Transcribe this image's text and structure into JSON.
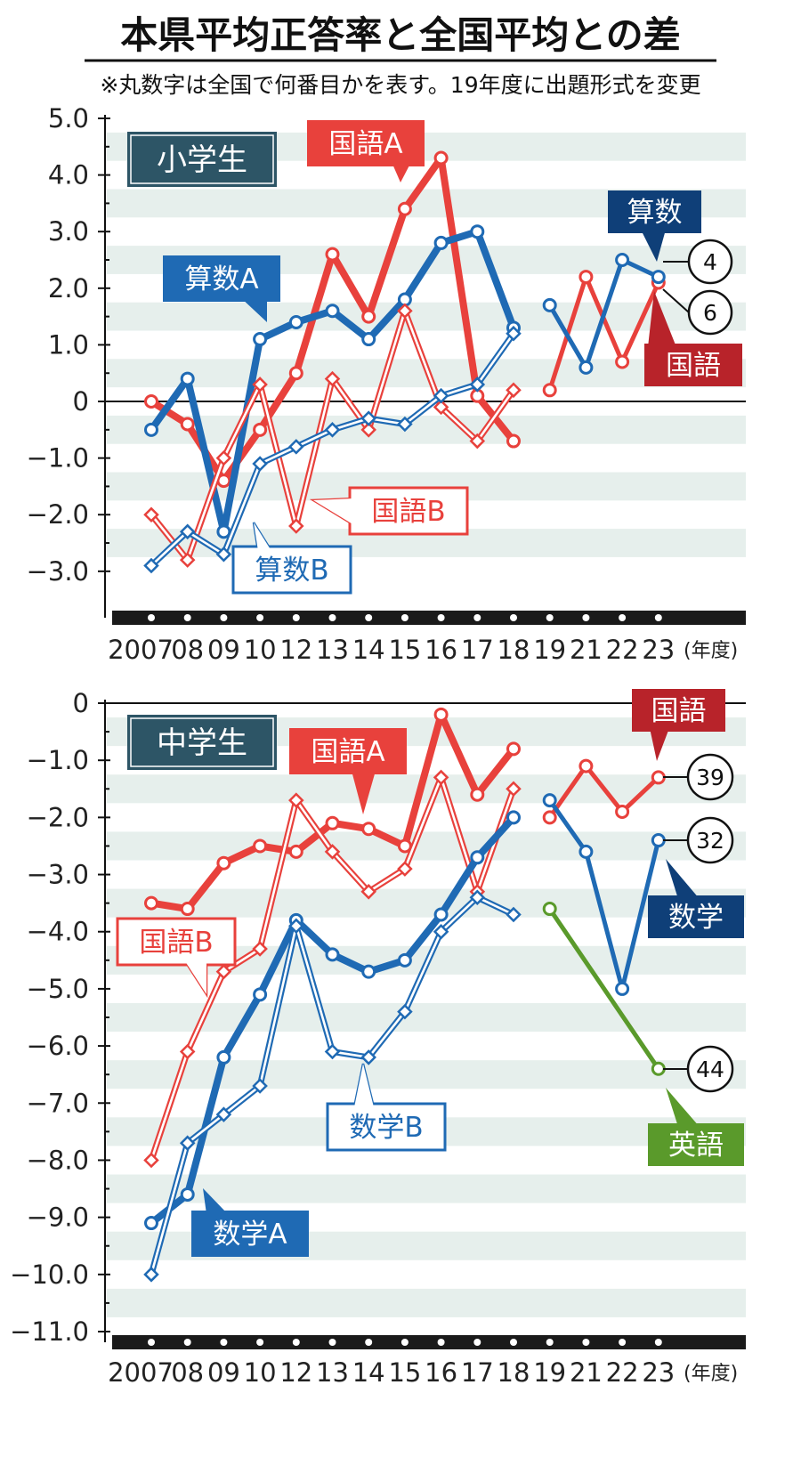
{
  "title": "本県平均正答率と全国平均との差",
  "note": "※丸数字は全国で何番目かを表す。19年度に出題形式を変更",
  "colors": {
    "red": "#e8413c",
    "blue": "#1f6ab4",
    "green": "#5a9a2b",
    "dark_red_label": "#b8232a",
    "dark_blue_label": "#0f3f78",
    "panel_label_bg": "#2d5566",
    "band": "#e6efec"
  },
  "x_tick_labels": [
    "2007",
    "08",
    "09",
    "10",
    "12",
    "13",
    "14",
    "15",
    "16",
    "17",
    "18",
    "19",
    "21",
    "22",
    "23"
  ],
  "x_unit": "(年度)",
  "chart_data": [
    {
      "type": "line",
      "panel_label": "小学生",
      "ylim": [
        -3.6,
        5.0
      ],
      "y_ticks": [
        5.0,
        4.0,
        3.0,
        2.0,
        1.0,
        0,
        -1.0,
        -2.0,
        -3.0
      ],
      "y_tick_labels": [
        "5.0",
        "4.0",
        "3.0",
        "2.0",
        "1.0",
        "0",
        "−1.0",
        "−2.0",
        "−3.0"
      ],
      "series": [
        {
          "name": "国語A",
          "color": "#e8413c",
          "style": "thick",
          "marker": "circle",
          "x": [
            0,
            1,
            2,
            3,
            4,
            5,
            6,
            7,
            8,
            9,
            10
          ],
          "values": [
            0,
            -0.4,
            -1.4,
            -0.5,
            0.5,
            2.6,
            1.5,
            3.4,
            4.3,
            0.1,
            -0.7
          ]
        },
        {
          "name": "算数A",
          "color": "#1f6ab4",
          "style": "thick",
          "marker": "circle",
          "x": [
            0,
            1,
            2,
            3,
            4,
            5,
            6,
            7,
            8,
            9,
            10
          ],
          "values": [
            -0.5,
            0.4,
            -2.3,
            1.1,
            1.4,
            1.6,
            1.1,
            1.8,
            2.8,
            3.0,
            1.3
          ]
        },
        {
          "name": "国語B",
          "color": "#e8413c",
          "style": "double",
          "marker": "diamond",
          "x": [
            0,
            1,
            2,
            3,
            4,
            5,
            6,
            7,
            8,
            9,
            10
          ],
          "values": [
            -2.0,
            -2.8,
            -1.0,
            0.3,
            -2.2,
            0.4,
            -0.5,
            1.6,
            -0.1,
            -0.7,
            0.2
          ]
        },
        {
          "name": "算数B",
          "color": "#1f6ab4",
          "style": "double",
          "marker": "diamond",
          "x": [
            0,
            1,
            2,
            3,
            4,
            5,
            6,
            7,
            8,
            9,
            10
          ],
          "values": [
            -2.9,
            -2.3,
            -2.7,
            -1.1,
            -0.8,
            -0.5,
            -0.3,
            -0.4,
            0.1,
            0.3,
            1.2
          ]
        },
        {
          "name": "国語",
          "color": "#e8413c",
          "style": "medium",
          "marker": "circle",
          "x": [
            11,
            12,
            13,
            14
          ],
          "values": [
            0.2,
            2.2,
            0.7,
            2.1
          ]
        },
        {
          "name": "算数",
          "color": "#1f6ab4",
          "style": "medium",
          "marker": "circle",
          "x": [
            11,
            12,
            13,
            14
          ],
          "values": [
            1.7,
            0.6,
            2.5,
            2.2
          ]
        }
      ],
      "callouts": [
        {
          "text": "国語A",
          "color": "#e8413c",
          "variant": "filled"
        },
        {
          "text": "算数A",
          "color": "#1f6ab4",
          "variant": "filled"
        },
        {
          "text": "国語B",
          "color": "#e8413c",
          "variant": "outline"
        },
        {
          "text": "算数B",
          "color": "#1f6ab4",
          "variant": "outline"
        },
        {
          "text": "算数",
          "color": "#0f3f78",
          "variant": "filled"
        },
        {
          "text": "国語",
          "color": "#b8232a",
          "variant": "filled"
        }
      ],
      "rank_labels": [
        {
          "series": "算数",
          "rank": "4"
        },
        {
          "series": "国語",
          "rank": "6"
        }
      ]
    },
    {
      "type": "line",
      "panel_label": "中学生",
      "ylim": [
        -11.0,
        0
      ],
      "y_ticks": [
        0,
        -1.0,
        -2.0,
        -3.0,
        -4.0,
        -5.0,
        -6.0,
        -7.0,
        -8.0,
        -9.0,
        -10.0,
        -11.0
      ],
      "y_tick_labels": [
        "0",
        "−1.0",
        "−2.0",
        "−3.0",
        "−4.0",
        "−5.0",
        "−6.0",
        "−7.0",
        "−8.0",
        "−9.0",
        "−10.0",
        "−11.0"
      ],
      "series": [
        {
          "name": "国語A",
          "color": "#e8413c",
          "style": "thick",
          "marker": "circle",
          "x": [
            0,
            1,
            2,
            3,
            4,
            5,
            6,
            7,
            8,
            9,
            10
          ],
          "values": [
            -3.5,
            -3.6,
            -2.8,
            -2.5,
            -2.6,
            -2.1,
            -2.2,
            -2.5,
            -0.2,
            -1.6,
            -0.8
          ]
        },
        {
          "name": "国語B",
          "color": "#e8413c",
          "style": "double",
          "marker": "diamond",
          "x": [
            0,
            1,
            2,
            3,
            4,
            5,
            6,
            7,
            8,
            9,
            10
          ],
          "values": [
            -8.0,
            -6.1,
            -4.7,
            -4.3,
            -1.7,
            -2.6,
            -3.3,
            -2.9,
            -1.3,
            -3.3,
            -1.5
          ]
        },
        {
          "name": "数学A",
          "color": "#1f6ab4",
          "style": "thick",
          "marker": "circle",
          "x": [
            0,
            1,
            2,
            3,
            4,
            5,
            6,
            7,
            8,
            9,
            10
          ],
          "values": [
            -9.1,
            -8.6,
            -6.2,
            -5.1,
            -3.8,
            -4.4,
            -4.7,
            -4.5,
            -3.7,
            -2.7,
            -2.0
          ]
        },
        {
          "name": "数学B",
          "color": "#1f6ab4",
          "style": "double",
          "marker": "diamond",
          "x": [
            0,
            1,
            2,
            3,
            4,
            5,
            6,
            7,
            8,
            9,
            10
          ],
          "values": [
            -10.0,
            -7.7,
            -7.2,
            -6.7,
            -3.9,
            -6.1,
            -6.2,
            -5.4,
            -4.0,
            -3.4,
            -3.7
          ]
        },
        {
          "name": "国語",
          "color": "#e8413c",
          "style": "medium",
          "marker": "circle",
          "x": [
            11,
            12,
            13,
            14
          ],
          "values": [
            -2.0,
            -1.1,
            -1.9,
            -1.3
          ]
        },
        {
          "name": "数学",
          "color": "#1f6ab4",
          "style": "medium",
          "marker": "circle",
          "x": [
            11,
            12,
            13,
            14
          ],
          "values": [
            -1.7,
            -2.6,
            -5.0,
            -2.4
          ]
        },
        {
          "name": "英語",
          "color": "#5a9a2b",
          "style": "medium",
          "marker": "circle",
          "x": [
            11,
            14
          ],
          "values": [
            -3.6,
            -6.4
          ]
        }
      ],
      "callouts": [
        {
          "text": "国語A",
          "color": "#e8413c",
          "variant": "filled"
        },
        {
          "text": "国語B",
          "color": "#e8413c",
          "variant": "outline"
        },
        {
          "text": "数学A",
          "color": "#1f6ab4",
          "variant": "filled"
        },
        {
          "text": "数学B",
          "color": "#1f6ab4",
          "variant": "outline"
        },
        {
          "text": "国語",
          "color": "#b8232a",
          "variant": "filled"
        },
        {
          "text": "数学",
          "color": "#0f3f78",
          "variant": "filled"
        },
        {
          "text": "英語",
          "color": "#5a9a2b",
          "variant": "filled"
        }
      ],
      "rank_labels": [
        {
          "series": "国語",
          "rank": "39"
        },
        {
          "series": "数学",
          "rank": "32"
        },
        {
          "series": "英語",
          "rank": "44"
        }
      ]
    }
  ]
}
